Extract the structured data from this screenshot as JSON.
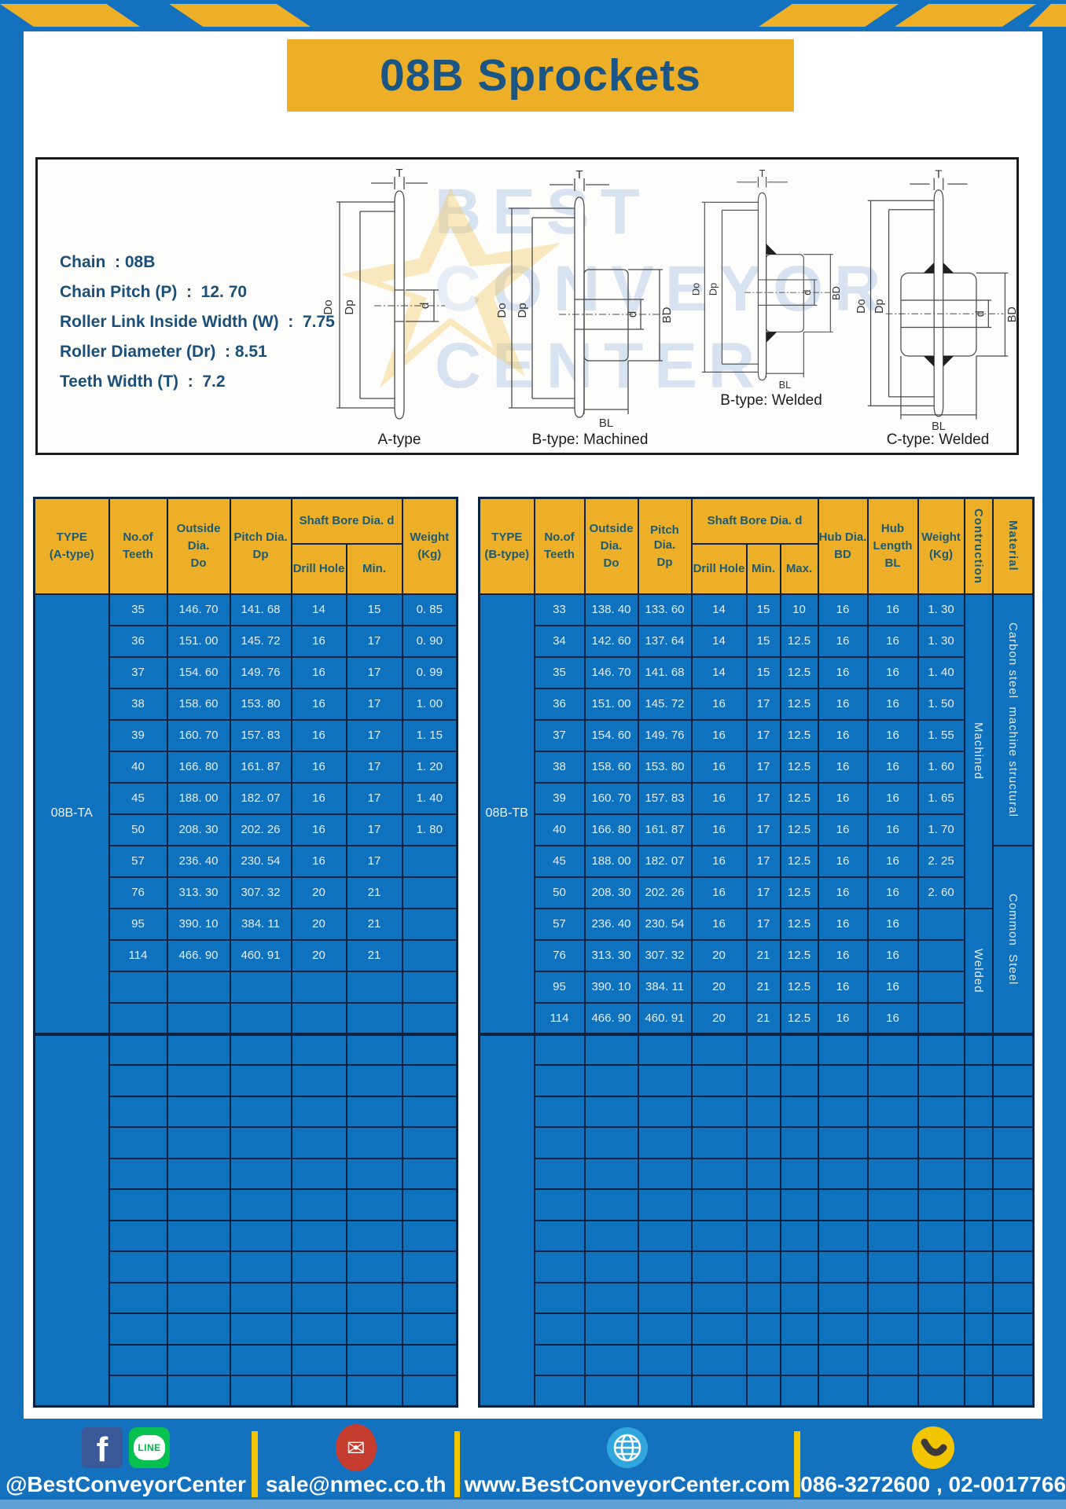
{
  "header": {
    "title": "08B Sprockets"
  },
  "specs": {
    "lines": [
      "Chain  : 08B",
      "Chain Pitch (P)  :  12. 70",
      "Roller Link Inside Width (W)  :  7.75",
      "Roller Diameter (Dr)  : 8.51",
      "Teeth Width (T)  :  7.2"
    ]
  },
  "diagram": {
    "types": [
      "A-type",
      "B-type: Machined",
      "B-type: Welded",
      "C-type: Welded"
    ],
    "dims": {
      "T": "T",
      "Do": "Do",
      "Dp": "Dp",
      "d": "d",
      "BD": "BD",
      "BL": "BL"
    },
    "watermark_lines": [
      "BEST",
      "CONVEYOR",
      "CENTER"
    ]
  },
  "table_a": {
    "headers": {
      "type1": "TYPE",
      "type2": "(A-type)",
      "teeth1": "No.of",
      "teeth2": "Teeth",
      "out1": "Outside",
      "out2": "Dia.",
      "out3": "Do",
      "pitch1": "Pitch Dia.",
      "pitch2": "Dp",
      "shaft_bore": "Shaft Bore Dia. d",
      "drill": "Drill Hole",
      "min": "Min.",
      "weight1": "Weight",
      "weight2": "(Kg)"
    },
    "type_label": "08B-TA",
    "rows": [
      [
        "35",
        "146. 70",
        "141. 68",
        "14",
        "15",
        "0. 85"
      ],
      [
        "36",
        "151. 00",
        "145. 72",
        "16",
        "17",
        "0. 90"
      ],
      [
        "37",
        "154. 60",
        "149. 76",
        "16",
        "17",
        "0. 99"
      ],
      [
        "38",
        "158. 60",
        "153. 80",
        "16",
        "17",
        "1. 00"
      ],
      [
        "39",
        "160. 70",
        "157. 83",
        "16",
        "17",
        "1. 15"
      ],
      [
        "40",
        "166. 80",
        "161. 87",
        "16",
        "17",
        "1. 20"
      ],
      [
        "45",
        "188. 00",
        "182. 07",
        "16",
        "17",
        "1. 40"
      ],
      [
        "50",
        "208. 30",
        "202. 26",
        "16",
        "17",
        "1. 80"
      ],
      [
        "57",
        "236. 40",
        "230. 54",
        "16",
        "17",
        ""
      ],
      [
        "76",
        "313. 30",
        "307. 32",
        "20",
        "21",
        ""
      ],
      [
        "95",
        "390. 10",
        "384. 11",
        "20",
        "21",
        ""
      ],
      [
        "114",
        "466. 90",
        "460. 91",
        "20",
        "21",
        ""
      ]
    ],
    "empty_rows_after": 2,
    "blank_section_rows": 12
  },
  "table_b": {
    "headers": {
      "type1": "TYPE",
      "type2": "(B-type)",
      "teeth1": "No.of",
      "teeth2": "Teeth",
      "out1": "Outside",
      "out2": "Dia.",
      "out3": "Do",
      "pitch1": "Pitch Dia.",
      "pitch2": "Dp",
      "shaft_bore": "Shaft Bore Dia. d",
      "drill": "Drill Hole",
      "min": "Min.",
      "max": "Max.",
      "hub1": "Hub Dia.",
      "hub2": "BD",
      "hublen1": "Hub",
      "hublen2": "Length",
      "hublen3": "BL",
      "weight1": "Weight",
      "weight2": "(Kg)",
      "construction": "Contruction",
      "material": "Material"
    },
    "type_label": "08B-TB",
    "rows": [
      [
        "33",
        "138. 40",
        "133. 60",
        "14",
        "15",
        "10",
        "16",
        "16",
        "1. 30"
      ],
      [
        "34",
        "142. 60",
        "137. 64",
        "14",
        "15",
        "12.5",
        "16",
        "16",
        "1. 30"
      ],
      [
        "35",
        "146. 70",
        "141. 68",
        "14",
        "15",
        "12.5",
        "16",
        "16",
        "1. 40"
      ],
      [
        "36",
        "151. 00",
        "145. 72",
        "16",
        "17",
        "12.5",
        "16",
        "16",
        "1. 50"
      ],
      [
        "37",
        "154. 60",
        "149. 76",
        "16",
        "17",
        "12.5",
        "16",
        "16",
        "1. 55"
      ],
      [
        "38",
        "158. 60",
        "153. 80",
        "16",
        "17",
        "12.5",
        "16",
        "16",
        "1. 60"
      ],
      [
        "39",
        "160. 70",
        "157. 83",
        "16",
        "17",
        "12.5",
        "16",
        "16",
        "1. 65"
      ],
      [
        "40",
        "166. 80",
        "161. 87",
        "16",
        "17",
        "12.5",
        "16",
        "16",
        "1. 70"
      ],
      [
        "45",
        "188. 00",
        "182. 07",
        "16",
        "17",
        "12.5",
        "16",
        "16",
        "2. 25"
      ],
      [
        "50",
        "208. 30",
        "202. 26",
        "16",
        "17",
        "12.5",
        "16",
        "16",
        "2. 60"
      ],
      [
        "57",
        "236. 40",
        "230. 54",
        "16",
        "17",
        "12.5",
        "16",
        "16",
        ""
      ],
      [
        "76",
        "313. 30",
        "307. 32",
        "20",
        "21",
        "12.5",
        "16",
        "16",
        ""
      ],
      [
        "95",
        "390. 10",
        "384. 11",
        "20",
        "21",
        "12.5",
        "16",
        "16",
        ""
      ],
      [
        "114",
        "466. 90",
        "460. 91",
        "20",
        "21",
        "12.5",
        "16",
        "16",
        ""
      ]
    ],
    "construction_spans": [
      {
        "label": "Machined",
        "rows": 10
      },
      {
        "label": "Welded",
        "rows": 4
      }
    ],
    "material_spans": [
      {
        "label": "Carbon steel  machine structural",
        "rows": 8
      },
      {
        "label": "Common  Steel",
        "rows": 6
      }
    ],
    "empty_rows_after": 0,
    "blank_section_rows": 12
  },
  "footer": {
    "social_handle": "@BestConveyorCenter",
    "facebook_glyph": "f",
    "line_label": "LINE",
    "email": "sale@nmec.co.th",
    "email_glyph": "✉",
    "website": "www.BestConveyorCenter.com",
    "phones": "086-3272600 , 02-0017766",
    "icons": [
      "facebook-icon",
      "line-icon",
      "email-icon",
      "globe-icon",
      "phone-icon"
    ]
  },
  "colors": {
    "frame_blue": "#1471BD",
    "table_blue": "#0F72BE",
    "accent_yellow": "#EDAF27",
    "separator_yellow": "#F2C500",
    "header_text": "#1D5B74",
    "title_text": "#1A5584",
    "grid_line": "#0B2240",
    "footer_strip": "#5FA0D6"
  }
}
